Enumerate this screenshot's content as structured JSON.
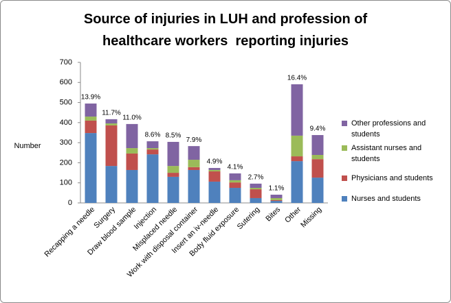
{
  "chart_data": {
    "type": "stacked_bar",
    "title": "Source of injuries in LUH and profession of healthcare workers  reporting injuries",
    "y_label": "Number",
    "categories": [
      "Recapping a needle",
      "Surgery",
      "Draw blood sample",
      "Injection",
      "Misplaced needle",
      "Work with disposal container",
      "Insert an iv-needle",
      "Body fluid exposure",
      "Sutering",
      "Bites",
      "Other",
      "Missing"
    ],
    "series": [
      {
        "name": "Nurses and students",
        "color": "#4f81bd",
        "values": [
          348,
          184,
          164,
          242,
          130,
          164,
          106,
          75,
          24,
          10,
          208,
          126
        ]
      },
      {
        "name": "Physicians and students",
        "color": "#c0504d",
        "values": [
          62,
          202,
          82,
          24,
          20,
          14,
          51,
          27,
          44,
          4,
          24,
          92
        ]
      },
      {
        "name": "Assistant nurses and students",
        "color": "#9bbb59",
        "values": [
          20,
          10,
          27,
          7,
          34,
          37,
          7,
          11,
          7,
          10,
          103,
          21
        ]
      },
      {
        "name": "Other professions and students",
        "color": "#8064a2",
        "values": [
          65,
          21,
          120,
          34,
          120,
          68,
          10,
          34,
          21,
          17,
          256,
          99
        ]
      }
    ],
    "annotations": [
      "13.9%",
      "11.7%",
      "11.0%",
      "8.6%",
      "8.5%",
      "7.9%",
      "4.9%",
      "4.1%",
      "2.7%",
      "1.1%",
      "16.4%",
      "9.4%"
    ],
    "ylim": [
      0,
      700
    ],
    "yticks": [
      0,
      100,
      200,
      300,
      400,
      500,
      600,
      700
    ]
  }
}
